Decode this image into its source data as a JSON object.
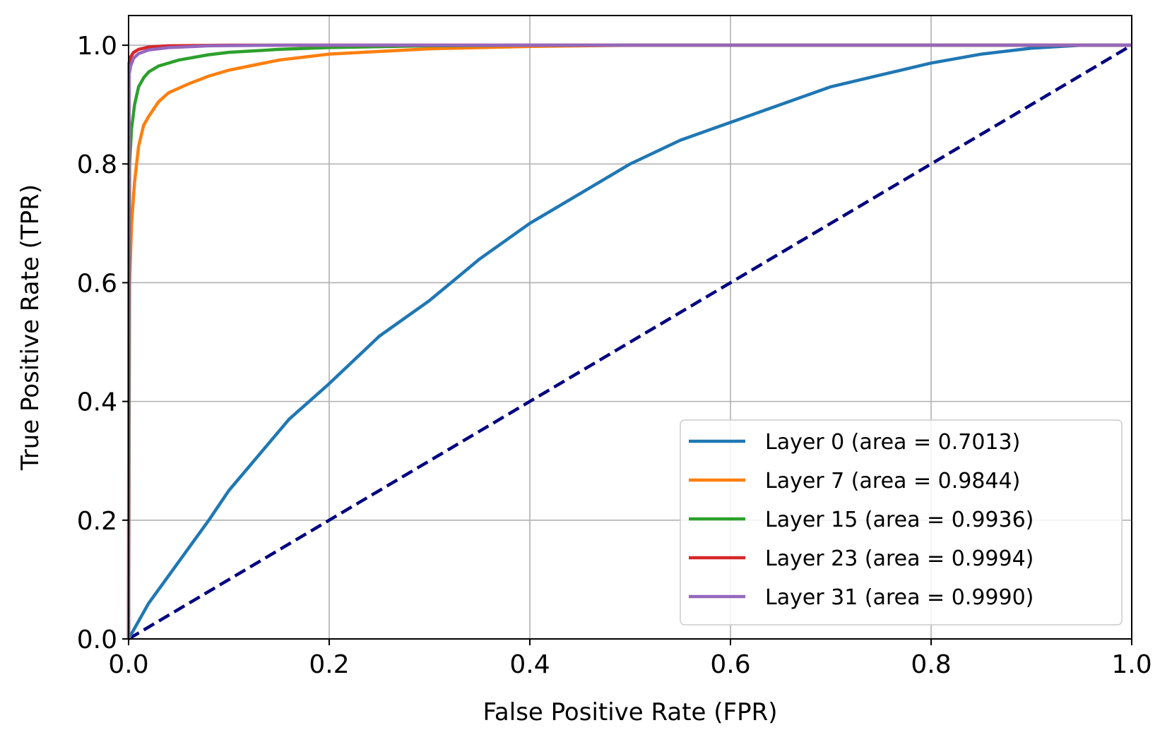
{
  "chart_data": {
    "type": "line",
    "title": "",
    "xlabel": "False Positive Rate (FPR)",
    "ylabel": "True Positive Rate (TPR)",
    "xlim": [
      0.0,
      1.0
    ],
    "ylim": [
      0.0,
      1.05
    ],
    "grid": true,
    "legend_position": "bottom-right",
    "xticks": [
      0.0,
      0.2,
      0.4,
      0.6,
      0.8,
      1.0
    ],
    "yticks": [
      0.0,
      0.2,
      0.4,
      0.6,
      0.8,
      1.0
    ],
    "xtick_labels": [
      "0.0",
      "0.2",
      "0.4",
      "0.6",
      "0.8",
      "1.0"
    ],
    "ytick_labels": [
      "0.0",
      "0.2",
      "0.4",
      "0.6",
      "0.8",
      "1.0"
    ],
    "series": [
      {
        "name": "Layer 0 (area = 0.7013)",
        "color": "#1f77b4",
        "x": [
          0,
          0.02,
          0.05,
          0.08,
          0.1,
          0.13,
          0.16,
          0.2,
          0.25,
          0.3,
          0.35,
          0.4,
          0.45,
          0.5,
          0.55,
          0.6,
          0.65,
          0.7,
          0.75,
          0.8,
          0.85,
          0.9,
          0.95,
          1.0
        ],
        "y": [
          0,
          0.06,
          0.13,
          0.2,
          0.25,
          0.31,
          0.37,
          0.43,
          0.51,
          0.57,
          0.64,
          0.7,
          0.75,
          0.8,
          0.84,
          0.87,
          0.9,
          0.93,
          0.95,
          0.97,
          0.985,
          0.995,
          1.0,
          1.0
        ]
      },
      {
        "name": "Layer 7 (area = 0.9844)",
        "color": "#ff7f0e",
        "x": [
          0,
          0.001,
          0.003,
          0.006,
          0.01,
          0.015,
          0.02,
          0.03,
          0.04,
          0.06,
          0.08,
          0.1,
          0.15,
          0.2,
          0.3,
          0.4,
          0.5,
          1.0
        ],
        "y": [
          0,
          0.6,
          0.7,
          0.77,
          0.83,
          0.865,
          0.88,
          0.905,
          0.92,
          0.935,
          0.948,
          0.958,
          0.975,
          0.985,
          0.994,
          0.998,
          1.0,
          1.0
        ]
      },
      {
        "name": "Layer 15 (area = 0.9936)",
        "color": "#2ca02c",
        "x": [
          0,
          0.001,
          0.003,
          0.006,
          0.01,
          0.015,
          0.02,
          0.03,
          0.05,
          0.08,
          0.1,
          0.15,
          0.2,
          0.3,
          0.4,
          1.0
        ],
        "y": [
          0,
          0.8,
          0.86,
          0.9,
          0.93,
          0.945,
          0.955,
          0.965,
          0.975,
          0.984,
          0.988,
          0.993,
          0.996,
          0.999,
          1.0,
          1.0
        ]
      },
      {
        "name": "Layer 23 (area = 0.9994)",
        "color": "#d62728",
        "x": [
          0,
          0.0005,
          0.002,
          0.005,
          0.01,
          0.02,
          0.04,
          0.1,
          1.0
        ],
        "y": [
          0,
          0.97,
          0.98,
          0.988,
          0.993,
          0.997,
          0.999,
          1.0,
          1.0
        ]
      },
      {
        "name": "Layer 31 (area = 0.9990)",
        "color": "#9467bd",
        "x": [
          0,
          0.0005,
          0.002,
          0.005,
          0.01,
          0.02,
          0.04,
          0.08,
          0.15,
          1.0
        ],
        "y": [
          0,
          0.95,
          0.965,
          0.978,
          0.986,
          0.992,
          0.996,
          0.999,
          1.0,
          1.0
        ]
      }
    ],
    "reference_line": {
      "color": "#000080",
      "style": "dashed",
      "x": [
        0,
        1
      ],
      "y": [
        0,
        1
      ]
    }
  }
}
